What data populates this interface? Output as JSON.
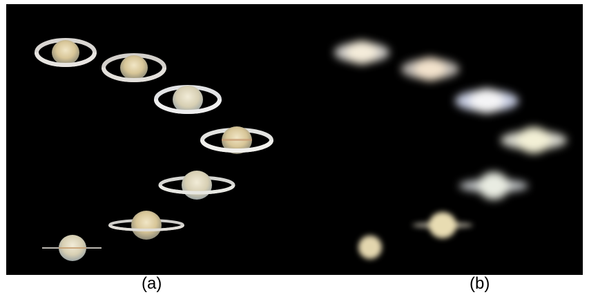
{
  "captions": {
    "panel_a": "(a)",
    "panel_b": "(b)"
  },
  "colors": {
    "background": "#000000",
    "frame": "#ffffff",
    "ring": "#d9d6d2",
    "planet": "#e3d4ae"
  }
}
